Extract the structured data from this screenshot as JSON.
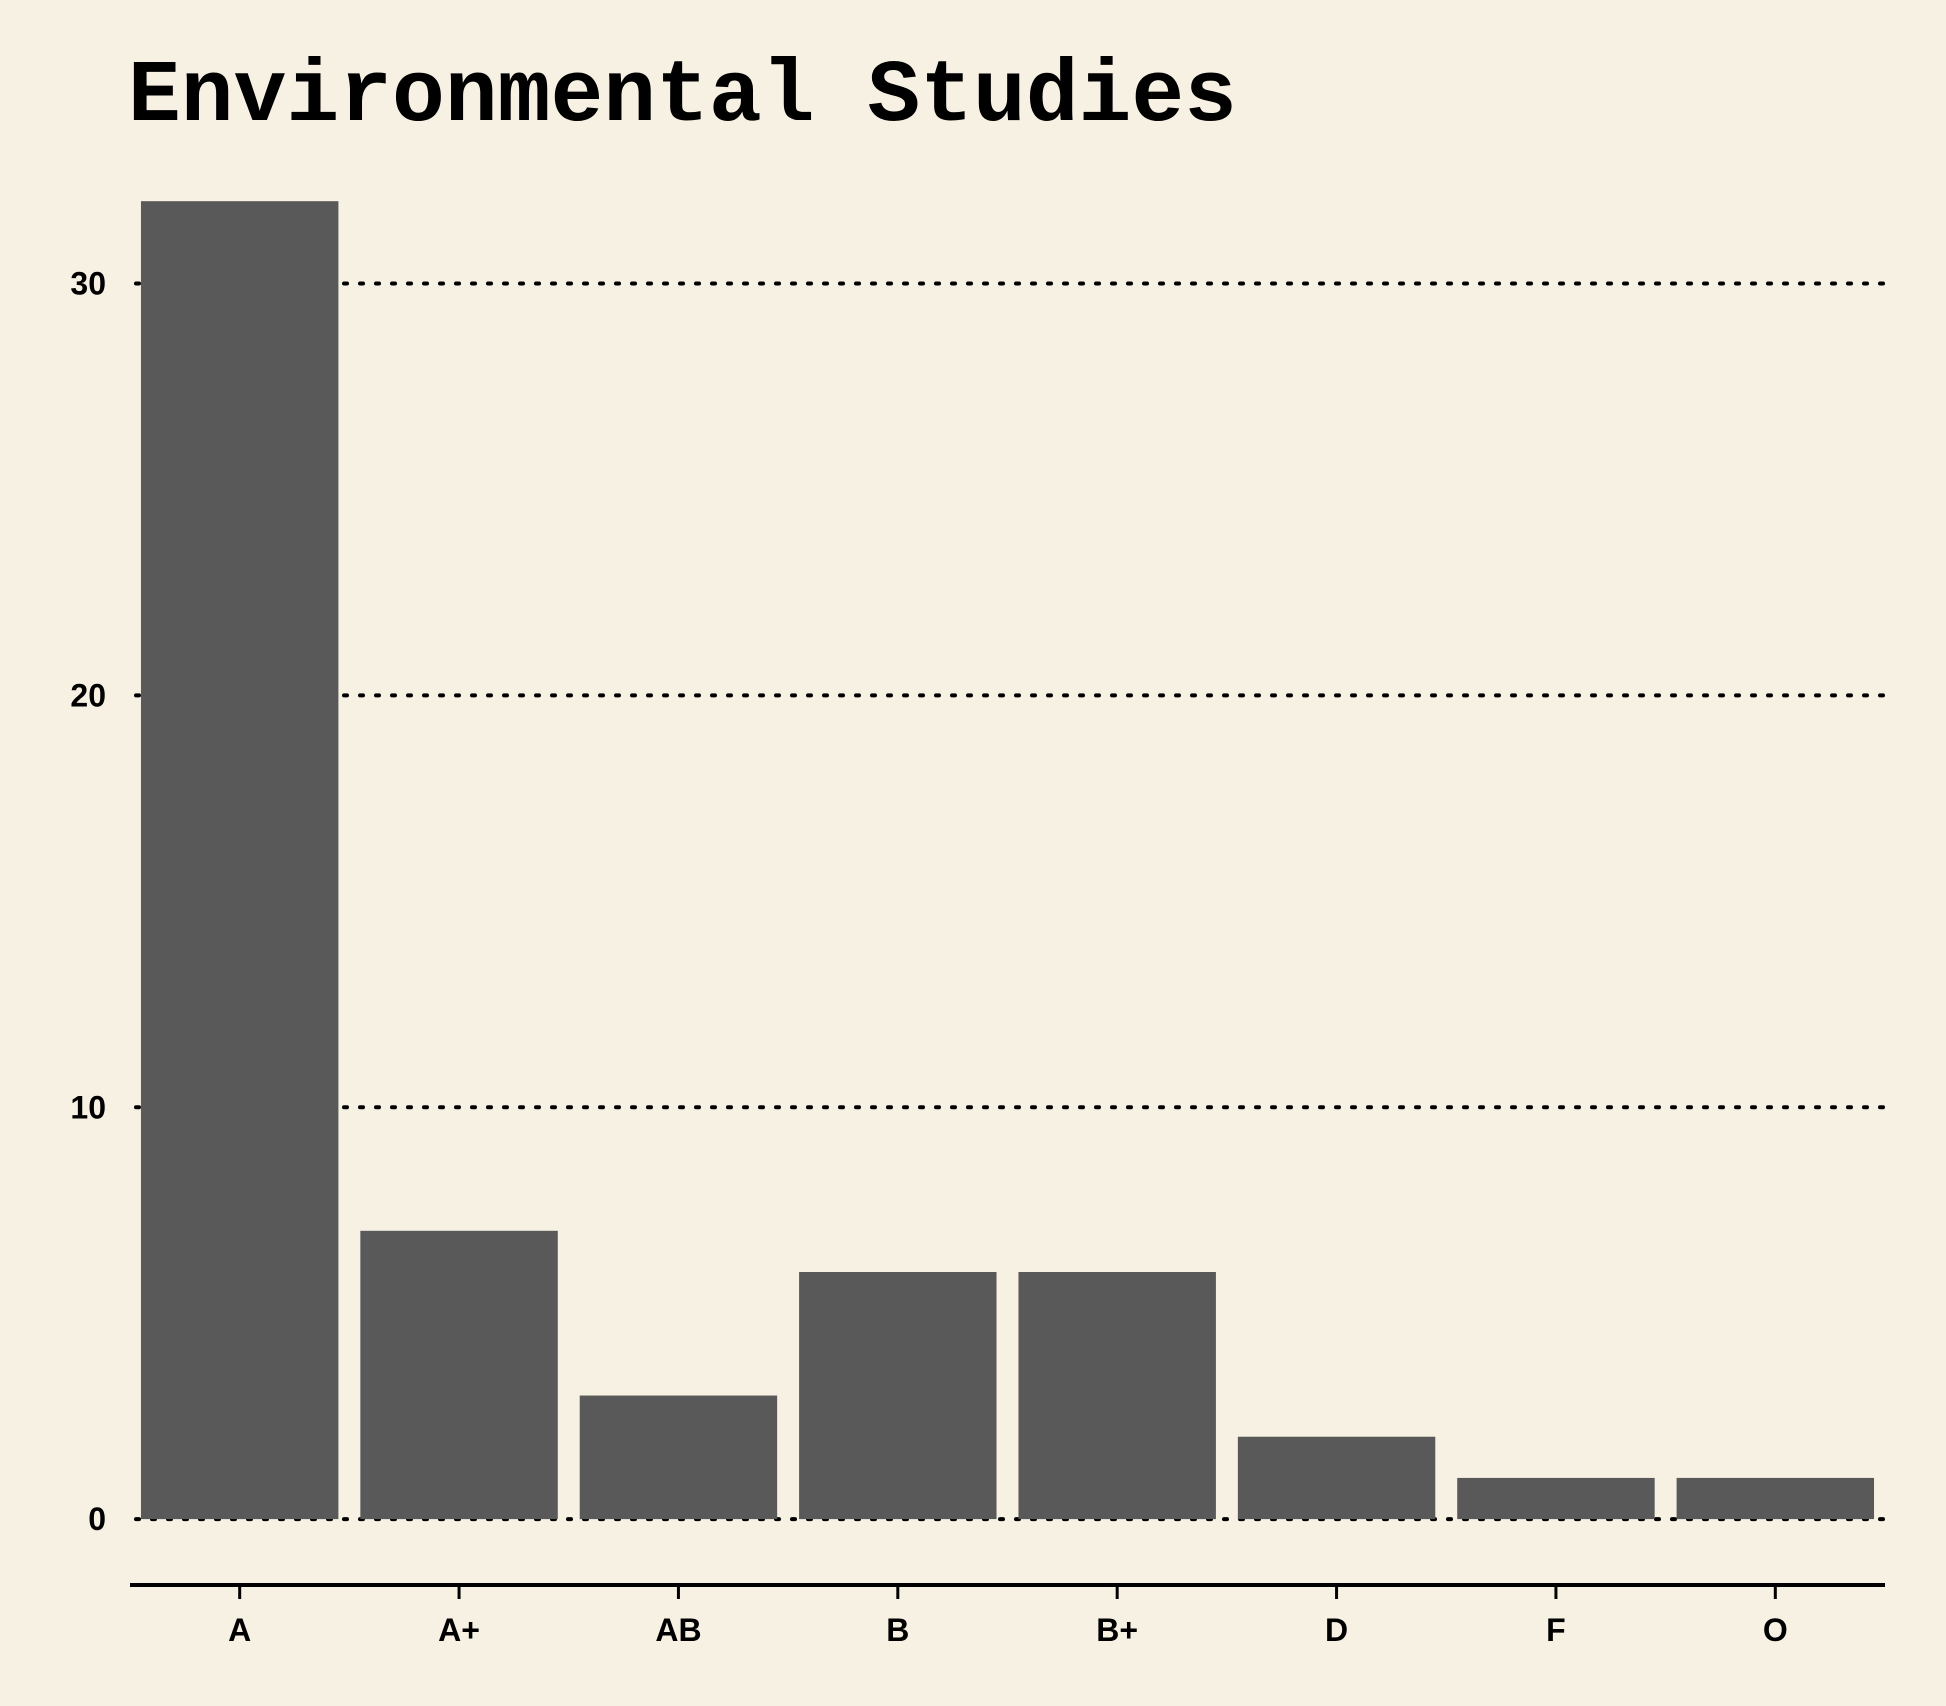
{
  "chart_data": {
    "type": "bar",
    "title": "Environmental Studies",
    "xlabel": "",
    "ylabel": "",
    "categories": [
      "A",
      "A+",
      "AB",
      "B",
      "B+",
      "D",
      "F",
      "O"
    ],
    "values": [
      32,
      7,
      3,
      6,
      6,
      2,
      1,
      1
    ],
    "ylim": [
      -1.6,
      33
    ],
    "yticks": [
      0,
      10,
      20,
      30
    ],
    "grid": true,
    "bar_color": "#595959",
    "background_color": "#f7f1e3"
  }
}
